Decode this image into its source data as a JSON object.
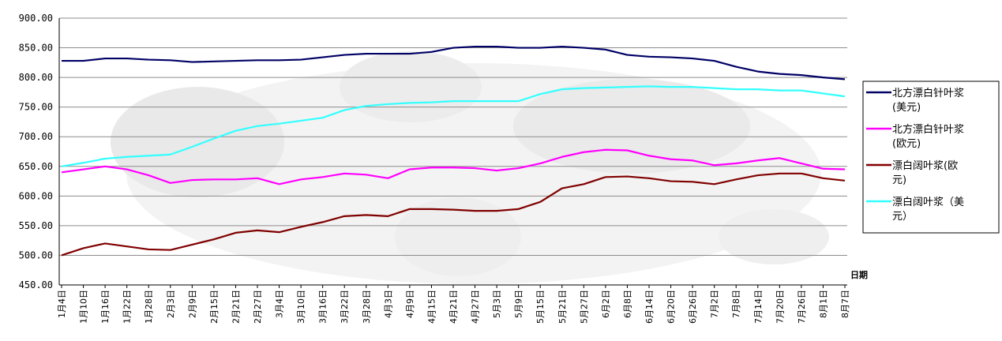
{
  "chart_data": {
    "type": "line",
    "xlabel": "日期",
    "ylim": [
      450,
      900
    ],
    "yticks": [
      "450.00",
      "500.00",
      "550.00",
      "600.00",
      "650.00",
      "700.00",
      "750.00",
      "800.00",
      "850.00",
      "900.00"
    ],
    "grid": true,
    "legend_position": "right",
    "categories": [
      "1月4日",
      "1月10日",
      "1月16日",
      "1月22日",
      "1月28日",
      "2月3日",
      "2月9日",
      "2月15日",
      "2月21日",
      "2月27日",
      "3月4日",
      "3月10日",
      "3月16日",
      "3月22日",
      "3月28日",
      "4月3日",
      "4月9日",
      "4月15日",
      "4月21日",
      "4月27日",
      "5月3日",
      "5月9日",
      "5月15日",
      "5月21日",
      "5月27日",
      "6月2日",
      "6月8日",
      "6月14日",
      "6月20日",
      "6月26日",
      "7月2日",
      "7月8日",
      "7月14日",
      "7月20日",
      "7月26日",
      "8月1日",
      "8月7日"
    ],
    "series": [
      {
        "name": "北方漂白针叶浆(美元)",
        "color": "#000066",
        "values": [
          828,
          828,
          832,
          832,
          830,
          829,
          826,
          827,
          828,
          829,
          829,
          830,
          834,
          838,
          840,
          840,
          840,
          843,
          850,
          852,
          852,
          850,
          850,
          852,
          850,
          847,
          838,
          835,
          834,
          832,
          828,
          818,
          810,
          806,
          804,
          800,
          797
        ]
      },
      {
        "name": "北方漂白针叶浆(欧元)",
        "color": "#ff00ff",
        "values": [
          640,
          645,
          650,
          645,
          635,
          622,
          627,
          628,
          628,
          630,
          620,
          628,
          632,
          638,
          636,
          630,
          645,
          648,
          648,
          647,
          643,
          647,
          655,
          666,
          674,
          678,
          677,
          668,
          662,
          660,
          652,
          655,
          660,
          664,
          655,
          646,
          645
        ]
      },
      {
        "name": "漂白阔叶浆(欧元)",
        "color": "#800000",
        "values": [
          500,
          512,
          520,
          515,
          510,
          509,
          518,
          527,
          538,
          542,
          539,
          548,
          556,
          566,
          568,
          566,
          578,
          578,
          577,
          575,
          575,
          578,
          590,
          613,
          620,
          632,
          633,
          630,
          625,
          624,
          620,
          628,
          635,
          638,
          638,
          630,
          626
        ]
      },
      {
        "name": "漂白阔叶浆（美元）",
        "color": "#33ffff",
        "values": [
          650,
          656,
          663,
          666,
          668,
          670,
          683,
          697,
          710,
          718,
          722,
          727,
          732,
          745,
          752,
          755,
          757,
          758,
          760,
          760,
          760,
          760,
          772,
          780,
          782,
          783,
          784,
          785,
          784,
          784,
          782,
          780,
          780,
          778,
          778,
          773,
          768
        ]
      }
    ],
    "legend_entries": [
      {
        "line1": "北方漂白针叶浆",
        "line2": "(美元)"
      },
      {
        "line1": "北方漂白针叶浆",
        "line2": "(欧元)"
      },
      {
        "line1": "漂白阔叶浆(欧",
        "line2": "元)"
      },
      {
        "line1": "漂白阔叶浆（美",
        "line2": "元）"
      }
    ]
  }
}
